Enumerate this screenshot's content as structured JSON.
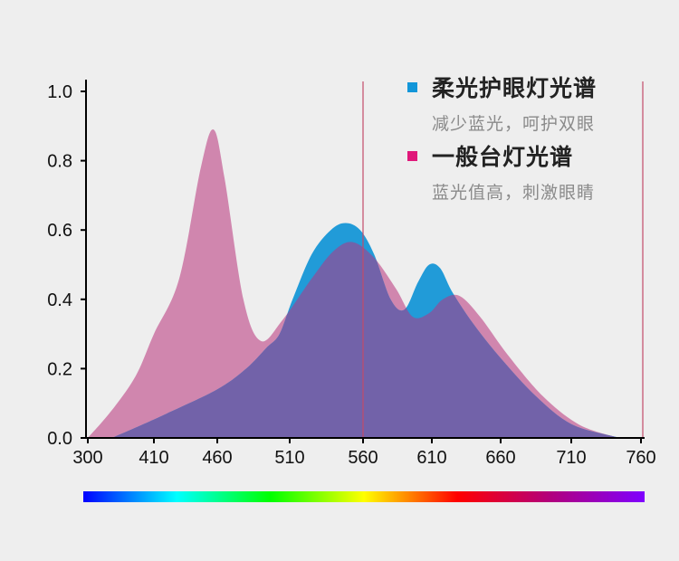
{
  "chart_data": {
    "type": "area",
    "x_ticks": [
      300,
      410,
      460,
      510,
      560,
      610,
      660,
      710,
      760
    ],
    "y_ticks": [
      "0.0",
      "0.2",
      "0.4",
      "0.6",
      "0.8",
      "1.0"
    ],
    "ylim": [
      0,
      1.0
    ],
    "grid": false,
    "legend_position": "top-right",
    "vertical_markers": [
      560,
      760
    ],
    "series": [
      {
        "name": "一般台灯光谱",
        "description": "蓝光值高，刺激眼睛",
        "color": "#d086ae",
        "points": [
          [
            300,
            0
          ],
          [
            340,
            0.08
          ],
          [
            380,
            0.18
          ],
          [
            410,
            0.3
          ],
          [
            430,
            0.46
          ],
          [
            447,
            0.78
          ],
          [
            457,
            0.89
          ],
          [
            465,
            0.75
          ],
          [
            478,
            0.4
          ],
          [
            490,
            0.28
          ],
          [
            505,
            0.34
          ],
          [
            525,
            0.46
          ],
          [
            540,
            0.54
          ],
          [
            553,
            0.565
          ],
          [
            568,
            0.52
          ],
          [
            584,
            0.43
          ],
          [
            596,
            0.35
          ],
          [
            608,
            0.36
          ],
          [
            618,
            0.4
          ],
          [
            630,
            0.41
          ],
          [
            645,
            0.35
          ],
          [
            665,
            0.24
          ],
          [
            690,
            0.12
          ],
          [
            715,
            0.04
          ],
          [
            740,
            0.005
          ],
          [
            750,
            0
          ]
        ]
      },
      {
        "name": "柔光护眼灯光谱",
        "description": "减少蓝光，呵护双眼",
        "color": "#219bd8",
        "points": [
          [
            340,
            0
          ],
          [
            380,
            0.03
          ],
          [
            420,
            0.07
          ],
          [
            460,
            0.14
          ],
          [
            480,
            0.2
          ],
          [
            494,
            0.26
          ],
          [
            503,
            0.3
          ],
          [
            512,
            0.4
          ],
          [
            525,
            0.53
          ],
          [
            538,
            0.6
          ],
          [
            548,
            0.62
          ],
          [
            558,
            0.6
          ],
          [
            568,
            0.53
          ],
          [
            580,
            0.4
          ],
          [
            590,
            0.37
          ],
          [
            600,
            0.45
          ],
          [
            608,
            0.5
          ],
          [
            616,
            0.49
          ],
          [
            625,
            0.42
          ],
          [
            640,
            0.33
          ],
          [
            660,
            0.23
          ],
          [
            685,
            0.12
          ],
          [
            710,
            0.04
          ],
          [
            740,
            0.005
          ],
          [
            750,
            0
          ]
        ]
      }
    ]
  },
  "spectrum_colors": [
    "#0000ff",
    "#00ffff",
    "#00ff00",
    "#ffff00",
    "#ff0000",
    "#b1007e",
    "#7f00ff"
  ]
}
